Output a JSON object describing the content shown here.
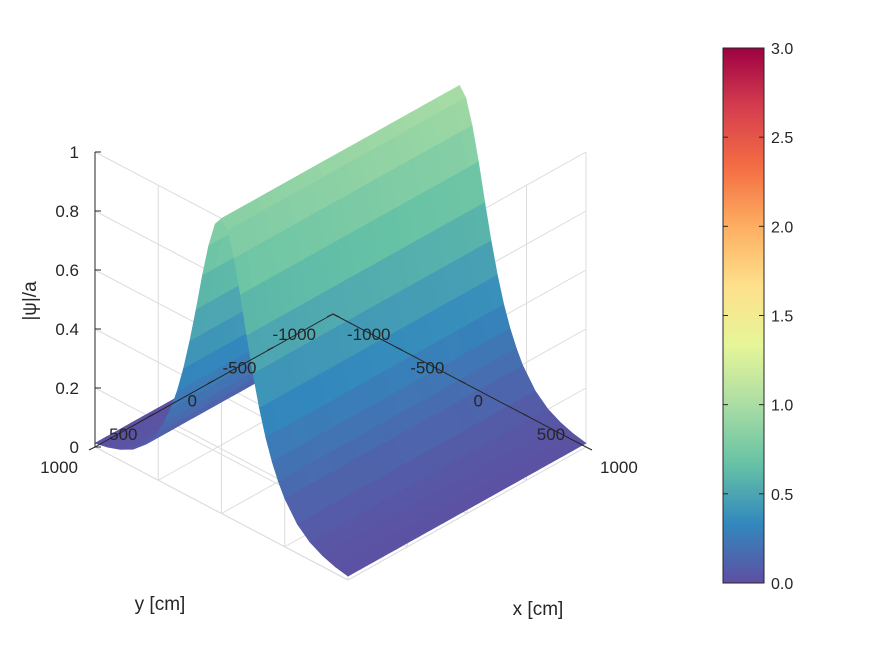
{
  "chart_data": {
    "type": "surface",
    "title": "",
    "xlabel": "x [cm]",
    "ylabel": "y [cm]",
    "zlabel": "|ψ|/a",
    "xlim": [
      -1000,
      1000
    ],
    "ylim": [
      -1000,
      1000
    ],
    "zlim": [
      0,
      1
    ],
    "x_ticks": [
      "-1000",
      "-500",
      "0",
      "500",
      "1000"
    ],
    "y_ticks": [
      "-1000",
      "-500",
      "0",
      "500",
      "1000"
    ],
    "z_ticks": [
      "0",
      "0.2",
      "0.4",
      "0.6",
      "0.8",
      "1"
    ],
    "grid": true,
    "surface": {
      "description_function": "sech(x / 200)",
      "x": [
        -1000,
        -900,
        -800,
        -700,
        -600,
        -500,
        -450,
        -400,
        -350,
        -300,
        -250,
        -200,
        -150,
        -100,
        -50,
        0,
        50,
        100,
        150,
        200,
        250,
        300,
        350,
        400,
        450,
        500,
        600,
        700,
        800,
        900,
        1000
      ],
      "z_profile": [
        0.013,
        0.022,
        0.037,
        0.06,
        0.099,
        0.163,
        0.21,
        0.266,
        0.336,
        0.425,
        0.53,
        0.648,
        0.775,
        0.887,
        0.97,
        1.0,
        0.97,
        0.887,
        0.775,
        0.648,
        0.53,
        0.425,
        0.336,
        0.266,
        0.21,
        0.163,
        0.099,
        0.06,
        0.037,
        0.022,
        0.013
      ],
      "constant_along": "y"
    },
    "colorbar": {
      "ticks": [
        "0.0",
        "0.5",
        "1.0",
        "1.5",
        "2.0",
        "2.5",
        "3.0"
      ],
      "range": [
        0,
        3
      ],
      "colormap": "Spectral (reversed)",
      "colors": [
        "#5e4fa2",
        "#3288bd",
        "#66c2a5",
        "#abdda4",
        "#e6f598",
        "#fee08b",
        "#fdae61",
        "#f46d43",
        "#d53e4f",
        "#9e0142"
      ]
    }
  }
}
